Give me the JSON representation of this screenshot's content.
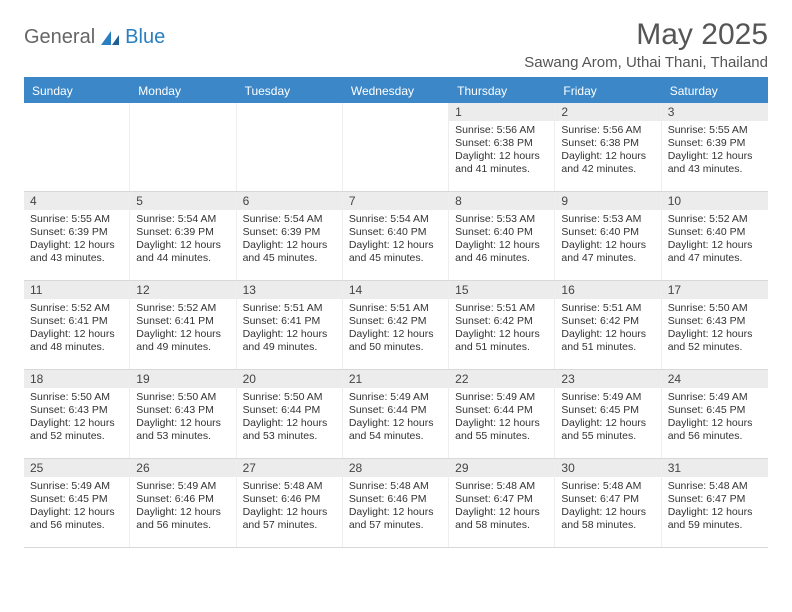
{
  "brand": {
    "part1": "General",
    "part2": "Blue"
  },
  "title": "May 2025",
  "location": "Sawang Arom, Uthai Thani, Thailand",
  "colors": {
    "header_bg": "#3b87c8",
    "header_text": "#ffffff",
    "daynum_bg": "#ececec",
    "text": "#333333",
    "brand_blue": "#2a7fbf",
    "page_bg": "#ffffff"
  },
  "table": {
    "type": "calendar",
    "columns": [
      "Sunday",
      "Monday",
      "Tuesday",
      "Wednesday",
      "Thursday",
      "Friday",
      "Saturday"
    ],
    "weeks": [
      [
        {
          "day": "",
          "sunrise": "",
          "sunset": "",
          "daylight": ""
        },
        {
          "day": "",
          "sunrise": "",
          "sunset": "",
          "daylight": ""
        },
        {
          "day": "",
          "sunrise": "",
          "sunset": "",
          "daylight": ""
        },
        {
          "day": "",
          "sunrise": "",
          "sunset": "",
          "daylight": ""
        },
        {
          "day": "1",
          "sunrise": "Sunrise: 5:56 AM",
          "sunset": "Sunset: 6:38 PM",
          "daylight": "Daylight: 12 hours and 41 minutes."
        },
        {
          "day": "2",
          "sunrise": "Sunrise: 5:56 AM",
          "sunset": "Sunset: 6:38 PM",
          "daylight": "Daylight: 12 hours and 42 minutes."
        },
        {
          "day": "3",
          "sunrise": "Sunrise: 5:55 AM",
          "sunset": "Sunset: 6:39 PM",
          "daylight": "Daylight: 12 hours and 43 minutes."
        }
      ],
      [
        {
          "day": "4",
          "sunrise": "Sunrise: 5:55 AM",
          "sunset": "Sunset: 6:39 PM",
          "daylight": "Daylight: 12 hours and 43 minutes."
        },
        {
          "day": "5",
          "sunrise": "Sunrise: 5:54 AM",
          "sunset": "Sunset: 6:39 PM",
          "daylight": "Daylight: 12 hours and 44 minutes."
        },
        {
          "day": "6",
          "sunrise": "Sunrise: 5:54 AM",
          "sunset": "Sunset: 6:39 PM",
          "daylight": "Daylight: 12 hours and 45 minutes."
        },
        {
          "day": "7",
          "sunrise": "Sunrise: 5:54 AM",
          "sunset": "Sunset: 6:40 PM",
          "daylight": "Daylight: 12 hours and 45 minutes."
        },
        {
          "day": "8",
          "sunrise": "Sunrise: 5:53 AM",
          "sunset": "Sunset: 6:40 PM",
          "daylight": "Daylight: 12 hours and 46 minutes."
        },
        {
          "day": "9",
          "sunrise": "Sunrise: 5:53 AM",
          "sunset": "Sunset: 6:40 PM",
          "daylight": "Daylight: 12 hours and 47 minutes."
        },
        {
          "day": "10",
          "sunrise": "Sunrise: 5:52 AM",
          "sunset": "Sunset: 6:40 PM",
          "daylight": "Daylight: 12 hours and 47 minutes."
        }
      ],
      [
        {
          "day": "11",
          "sunrise": "Sunrise: 5:52 AM",
          "sunset": "Sunset: 6:41 PM",
          "daylight": "Daylight: 12 hours and 48 minutes."
        },
        {
          "day": "12",
          "sunrise": "Sunrise: 5:52 AM",
          "sunset": "Sunset: 6:41 PM",
          "daylight": "Daylight: 12 hours and 49 minutes."
        },
        {
          "day": "13",
          "sunrise": "Sunrise: 5:51 AM",
          "sunset": "Sunset: 6:41 PM",
          "daylight": "Daylight: 12 hours and 49 minutes."
        },
        {
          "day": "14",
          "sunrise": "Sunrise: 5:51 AM",
          "sunset": "Sunset: 6:42 PM",
          "daylight": "Daylight: 12 hours and 50 minutes."
        },
        {
          "day": "15",
          "sunrise": "Sunrise: 5:51 AM",
          "sunset": "Sunset: 6:42 PM",
          "daylight": "Daylight: 12 hours and 51 minutes."
        },
        {
          "day": "16",
          "sunrise": "Sunrise: 5:51 AM",
          "sunset": "Sunset: 6:42 PM",
          "daylight": "Daylight: 12 hours and 51 minutes."
        },
        {
          "day": "17",
          "sunrise": "Sunrise: 5:50 AM",
          "sunset": "Sunset: 6:43 PM",
          "daylight": "Daylight: 12 hours and 52 minutes."
        }
      ],
      [
        {
          "day": "18",
          "sunrise": "Sunrise: 5:50 AM",
          "sunset": "Sunset: 6:43 PM",
          "daylight": "Daylight: 12 hours and 52 minutes."
        },
        {
          "day": "19",
          "sunrise": "Sunrise: 5:50 AM",
          "sunset": "Sunset: 6:43 PM",
          "daylight": "Daylight: 12 hours and 53 minutes."
        },
        {
          "day": "20",
          "sunrise": "Sunrise: 5:50 AM",
          "sunset": "Sunset: 6:44 PM",
          "daylight": "Daylight: 12 hours and 53 minutes."
        },
        {
          "day": "21",
          "sunrise": "Sunrise: 5:49 AM",
          "sunset": "Sunset: 6:44 PM",
          "daylight": "Daylight: 12 hours and 54 minutes."
        },
        {
          "day": "22",
          "sunrise": "Sunrise: 5:49 AM",
          "sunset": "Sunset: 6:44 PM",
          "daylight": "Daylight: 12 hours and 55 minutes."
        },
        {
          "day": "23",
          "sunrise": "Sunrise: 5:49 AM",
          "sunset": "Sunset: 6:45 PM",
          "daylight": "Daylight: 12 hours and 55 minutes."
        },
        {
          "day": "24",
          "sunrise": "Sunrise: 5:49 AM",
          "sunset": "Sunset: 6:45 PM",
          "daylight": "Daylight: 12 hours and 56 minutes."
        }
      ],
      [
        {
          "day": "25",
          "sunrise": "Sunrise: 5:49 AM",
          "sunset": "Sunset: 6:45 PM",
          "daylight": "Daylight: 12 hours and 56 minutes."
        },
        {
          "day": "26",
          "sunrise": "Sunrise: 5:49 AM",
          "sunset": "Sunset: 6:46 PM",
          "daylight": "Daylight: 12 hours and 56 minutes."
        },
        {
          "day": "27",
          "sunrise": "Sunrise: 5:48 AM",
          "sunset": "Sunset: 6:46 PM",
          "daylight": "Daylight: 12 hours and 57 minutes."
        },
        {
          "day": "28",
          "sunrise": "Sunrise: 5:48 AM",
          "sunset": "Sunset: 6:46 PM",
          "daylight": "Daylight: 12 hours and 57 minutes."
        },
        {
          "day": "29",
          "sunrise": "Sunrise: 5:48 AM",
          "sunset": "Sunset: 6:47 PM",
          "daylight": "Daylight: 12 hours and 58 minutes."
        },
        {
          "day": "30",
          "sunrise": "Sunrise: 5:48 AM",
          "sunset": "Sunset: 6:47 PM",
          "daylight": "Daylight: 12 hours and 58 minutes."
        },
        {
          "day": "31",
          "sunrise": "Sunrise: 5:48 AM",
          "sunset": "Sunset: 6:47 PM",
          "daylight": "Daylight: 12 hours and 59 minutes."
        }
      ]
    ]
  }
}
